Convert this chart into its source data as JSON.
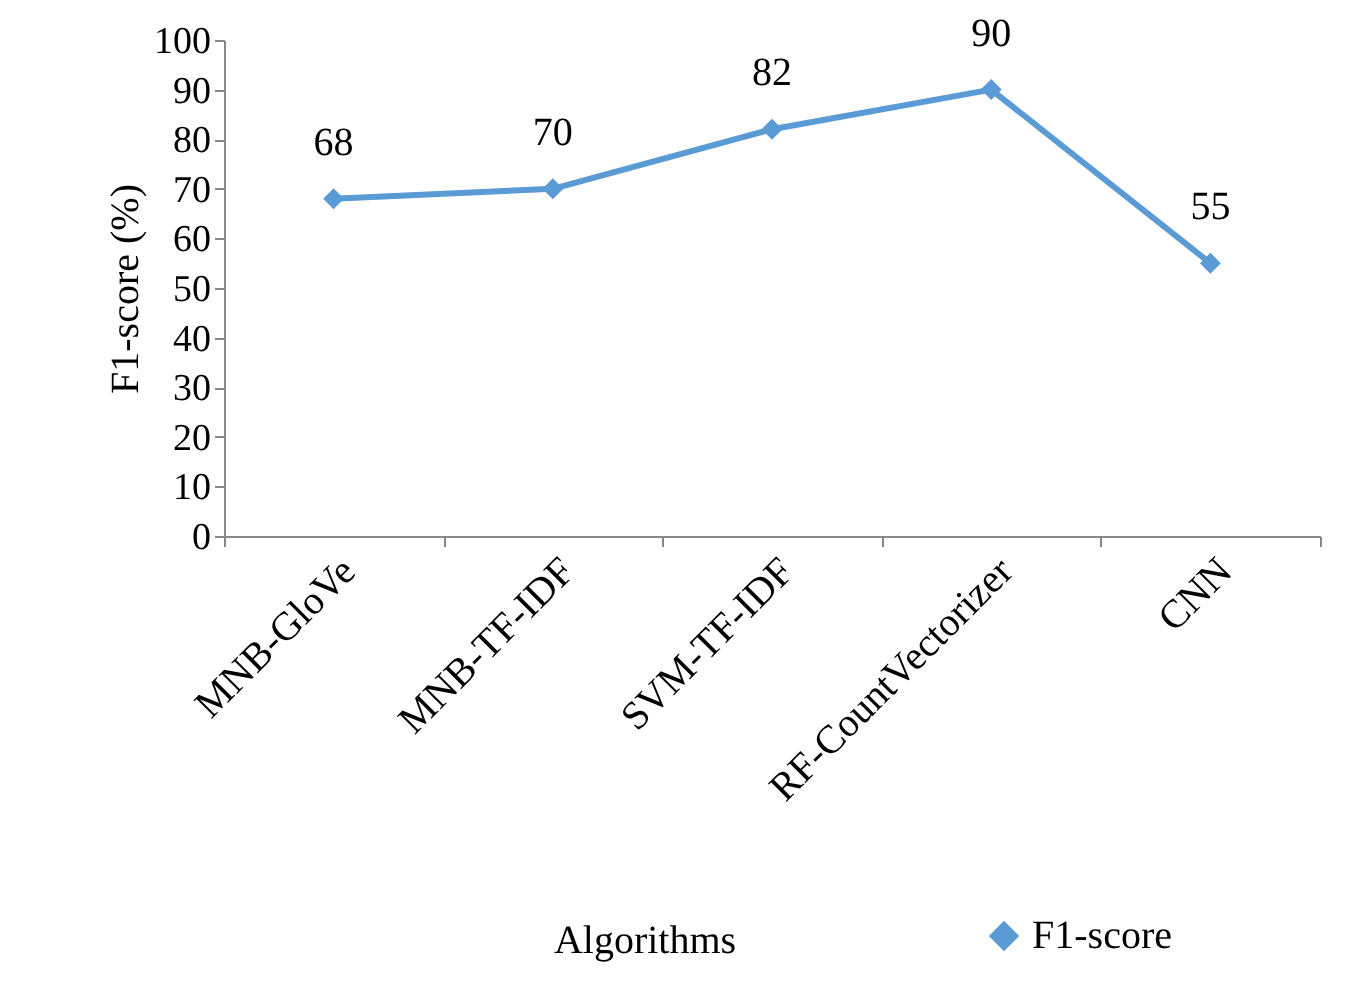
{
  "chart_data": {
    "type": "line",
    "xlabel": "Algorithms",
    "ylabel": "F1-score (%)",
    "categories": [
      "MNB-GloVe",
      "MNB-TF-IDF",
      "SVM-TF-IDF",
      "RF-CountVectorizer",
      "CNN"
    ],
    "series": [
      {
        "name": "F1-score",
        "color": "#5b9bd5",
        "values": [
          68,
          70,
          82,
          90,
          55
        ]
      }
    ],
    "ylim": [
      0,
      100
    ],
    "yticks": [
      0,
      10,
      20,
      30,
      40,
      50,
      60,
      70,
      80,
      90,
      100
    ],
    "data_labels": true,
    "marker": "diamond",
    "legend": "bottom right"
  }
}
